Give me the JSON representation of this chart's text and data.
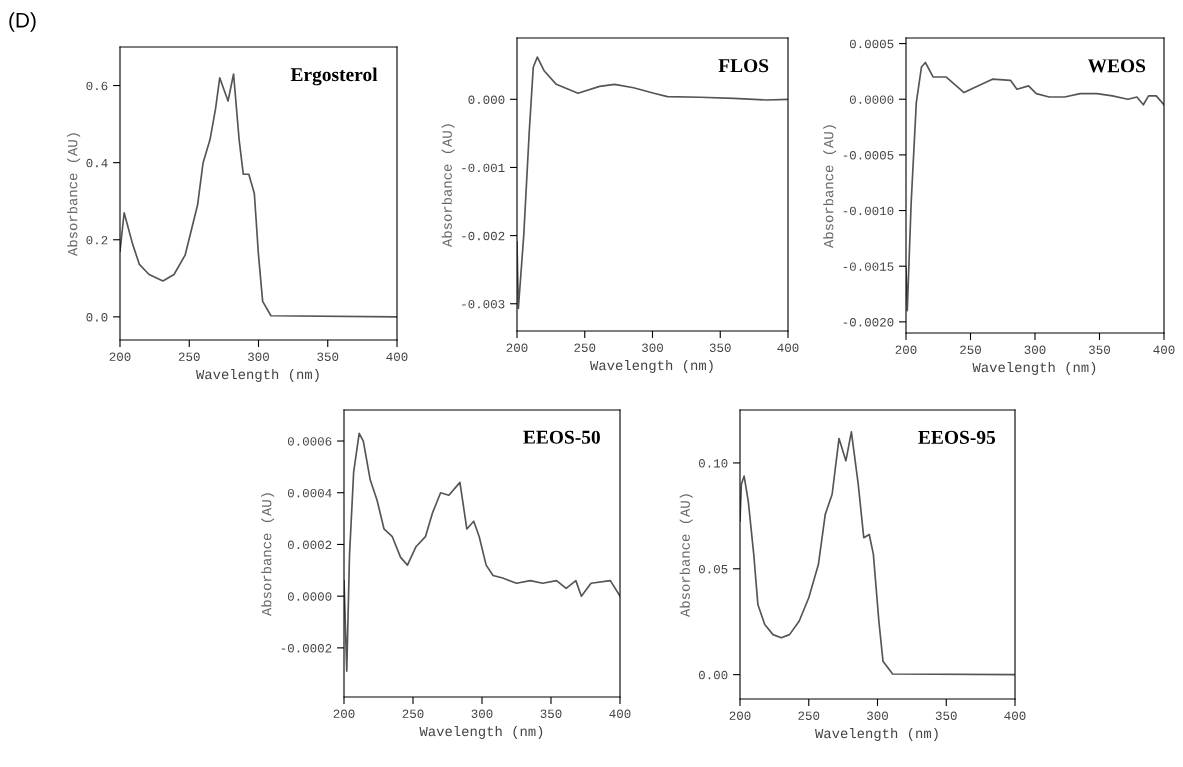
{
  "chart_data": [
    {
      "type": "line",
      "title": "Ergosterol",
      "xlabel": "Wavelength (nm)",
      "ylabel": "Absorbance (AU)",
      "annotations": [
        "(D)"
      ],
      "xlim": [
        200,
        400
      ],
      "xticks": [
        200,
        250,
        300,
        350,
        400
      ],
      "ylim": [
        -0.06,
        0.7
      ],
      "yticks": [
        {
          "value": 0,
          "label": "0.0"
        },
        0.2,
        0.4,
        0.6
      ],
      "grid": false,
      "legend": false,
      "series": [
        {
          "color": "#555555",
          "x": [
            200,
            203,
            209,
            214,
            221,
            231,
            239,
            247,
            256,
            260,
            265,
            269,
            272,
            278,
            282,
            286,
            289,
            293,
            297,
            300,
            303,
            309,
            400
          ],
          "values": [
            0.17,
            0.27,
            0.19,
            0.136,
            0.11,
            0.093,
            0.11,
            0.16,
            0.29,
            0.4,
            0.46,
            0.54,
            0.62,
            0.56,
            0.63,
            0.46,
            0.37,
            0.37,
            0.32,
            0.16,
            0.04,
            0.003,
            0
          ]
        }
      ]
    },
    {
      "type": "line",
      "title": "FLOS",
      "xlabel": "Wavelength (nm)",
      "ylabel": "Absorbance (AU)",
      "xlim": [
        200,
        400
      ],
      "xticks": [
        200,
        250,
        300,
        350,
        400
      ],
      "ylim": [
        -0.0034,
        0.0009
      ],
      "yticks": [
        {
          "value": -0.003,
          "label": "-0.003"
        },
        {
          "value": -0.002,
          "label": "-0.002"
        },
        {
          "value": -0.001,
          "label": "-0.001"
        },
        {
          "value": 0,
          "label": "0.000"
        }
      ],
      "grid": false,
      "legend": false,
      "series": [
        {
          "color": "#555555",
          "x": [
            200,
            201,
            205,
            209,
            212,
            215,
            220,
            229,
            245,
            261,
            272,
            286,
            301,
            311,
            335,
            360,
            384,
            400
          ],
          "values": [
            -0.00209,
            -0.00307,
            -0.00199,
            -0.00049,
            0.00047,
            0.00062,
            0.00042,
            0.00022,
            9e-05,
            0.00019,
            0.00022,
            0.00017,
            9e-05,
            4e-05,
            3e-05,
            1.5e-05,
            -1e-05,
            0
          ]
        }
      ]
    },
    {
      "type": "line",
      "title": "WEOS",
      "xlabel": "Wavelength (nm)",
      "ylabel": "Absorbance (AU)",
      "xlim": [
        200,
        400
      ],
      "xticks": [
        200,
        250,
        300,
        350,
        400
      ],
      "ylim": [
        -0.0021,
        0.00055
      ],
      "yticks": [
        {
          "value": -0.002,
          "label": "-0.0020"
        },
        {
          "value": -0.0015,
          "label": "-0.0015"
        },
        {
          "value": -0.001,
          "label": "-0.0010"
        },
        {
          "value": -0.0005,
          "label": "-0.0005"
        },
        {
          "value": 0,
          "label": "0.0000"
        },
        {
          "value": 0.0005,
          "label": "0.0005"
        }
      ],
      "grid": false,
      "legend": false,
      "series": [
        {
          "color": "#555555",
          "x": [
            200,
            201,
            204,
            208,
            212,
            215,
            221,
            231,
            245,
            254,
            267,
            281,
            286,
            295,
            301,
            311,
            323,
            335,
            348,
            360,
            372,
            379,
            384,
            388,
            394,
            400
          ],
          "values": [
            -0.00151,
            -0.0019,
            -0.00093,
            -3e-05,
            0.00029,
            0.00033,
            0.0002,
            0.0002,
            6e-05,
            0.00011,
            0.00018,
            0.00017,
            9e-05,
            0.00012,
            5e-05,
            2e-05,
            2e-05,
            5e-05,
            5e-05,
            3e-05,
            0,
            2e-05,
            -5e-05,
            3e-05,
            3e-05,
            -5e-05
          ]
        }
      ]
    },
    {
      "type": "line",
      "title": "EEOS-50",
      "xlabel": "Wavelength (nm)",
      "ylabel": "Absorbance (AU)",
      "xlim": [
        200,
        400
      ],
      "xticks": [
        200,
        250,
        300,
        350,
        400
      ],
      "ylim": [
        -0.00039,
        0.00072
      ],
      "yticks": [
        {
          "value": -0.0002,
          "label": "-0.0002"
        },
        {
          "value": 0,
          "label": "0.0000"
        },
        {
          "value": 0.0002,
          "label": "0.0002"
        },
        {
          "value": 0.0004,
          "label": "0.0004"
        },
        {
          "value": 0.0006,
          "label": "0.0006"
        }
      ],
      "grid": false,
      "legend": false,
      "series": [
        {
          "color": "#555555",
          "x": [
            200,
            202,
            204,
            207,
            211,
            214,
            219,
            224,
            229,
            235,
            241,
            246,
            252,
            259,
            264,
            270,
            276,
            284,
            289,
            294,
            298,
            303,
            308,
            315,
            325,
            335,
            344,
            354,
            361,
            368,
            372,
            379,
            393,
            400
          ],
          "values": [
            6e-05,
            -0.00029,
            0.00016,
            0.00048,
            0.00063,
            0.0006,
            0.00045,
            0.00037,
            0.00026,
            0.00023,
            0.00015,
            0.00012,
            0.00019,
            0.00023,
            0.00032,
            0.0004,
            0.00039,
            0.00044,
            0.00026,
            0.00029,
            0.00023,
            0.00012,
            8e-05,
            7e-05,
            5e-05,
            6e-05,
            5e-05,
            6e-05,
            3e-05,
            6e-05,
            0,
            5e-05,
            6e-05,
            0
          ]
        }
      ]
    },
    {
      "type": "line",
      "title": "EEOS-95",
      "xlabel": "Wavelength (nm)",
      "ylabel": "Absorbance (AU)",
      "xlim": [
        200,
        400
      ],
      "xticks": [
        200,
        250,
        300,
        350,
        400
      ],
      "ylim": [
        -0.0115,
        0.125
      ],
      "yticks": [
        {
          "value": 0,
          "label": "0.00"
        },
        {
          "value": 0.05,
          "label": "0.05"
        },
        {
          "value": 0.1,
          "label": "0.10"
        }
      ],
      "grid": false,
      "legend": false,
      "series": [
        {
          "color": "#555555",
          "x": [
            200,
            201,
            203,
            206,
            210,
            213,
            218,
            224,
            230,
            236,
            243,
            250,
            257,
            262,
            267,
            272,
            277,
            281,
            286,
            290,
            294,
            297,
            301,
            304,
            311,
            400
          ],
          "values": [
            0.0726,
            0.0899,
            0.0938,
            0.082,
            0.0568,
            0.0331,
            0.0237,
            0.0189,
            0.0174,
            0.0189,
            0.0252,
            0.0363,
            0.052,
            0.0757,
            0.0852,
            0.1115,
            0.101,
            0.1147,
            0.0899,
            0.0647,
            0.0662,
            0.0568,
            0.0252,
            0.0063,
            0.0003,
            0
          ]
        }
      ]
    }
  ]
}
